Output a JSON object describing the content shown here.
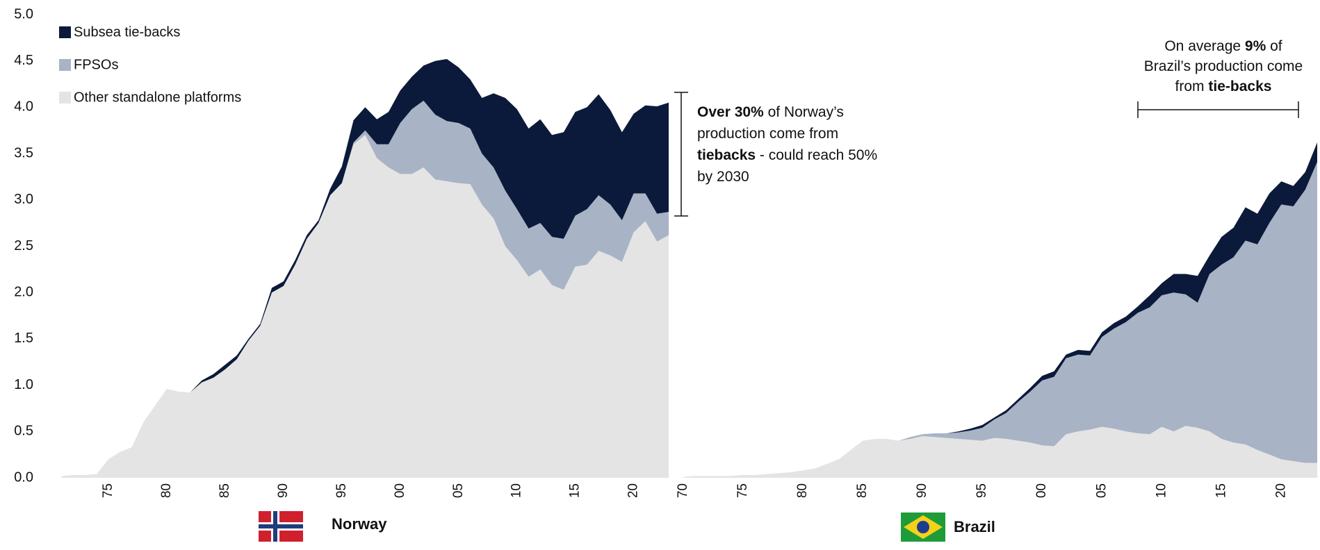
{
  "chart_data": [
    {
      "type": "area",
      "stacked": true,
      "label": "Norway",
      "x": [
        1971,
        1972,
        1973,
        1974,
        1975,
        1976,
        1977,
        1978,
        1979,
        1980,
        1981,
        1982,
        1983,
        1984,
        1985,
        1986,
        1987,
        1988,
        1989,
        1990,
        1991,
        1992,
        1993,
        1994,
        1995,
        1996,
        1997,
        1998,
        1999,
        2000,
        2001,
        2002,
        2003,
        2004,
        2005,
        2006,
        2007,
        2008,
        2009,
        2010,
        2011,
        2012,
        2013,
        2014,
        2015,
        2016,
        2017,
        2018,
        2019,
        2020,
        2021,
        2022,
        2023
      ],
      "series": [
        {
          "name": "Other standalone platforms",
          "color": "#e4e4e4",
          "values": [
            0.02,
            0.03,
            0.03,
            0.04,
            0.2,
            0.28,
            0.33,
            0.6,
            0.78,
            0.96,
            0.93,
            0.92,
            1.03,
            1.08,
            1.17,
            1.28,
            1.48,
            1.64,
            2.0,
            2.07,
            2.3,
            2.58,
            2.75,
            3.05,
            3.18,
            3.6,
            3.7,
            3.45,
            3.35,
            3.28,
            3.28,
            3.35,
            3.22,
            3.2,
            3.18,
            3.17,
            2.95,
            2.8,
            2.5,
            2.35,
            2.17,
            2.25,
            2.08,
            2.03,
            2.28,
            2.3,
            2.45,
            2.4,
            2.33,
            2.65,
            2.77,
            2.55,
            2.62
          ]
        },
        {
          "name": "FPSOs",
          "color": "#a9b3c6",
          "values": [
            0,
            0,
            0,
            0,
            0,
            0,
            0,
            0,
            0,
            0,
            0,
            0,
            0,
            0,
            0,
            0,
            0,
            0,
            0,
            0,
            0,
            0,
            0,
            0,
            0,
            0.02,
            0.05,
            0.15,
            0.25,
            0.55,
            0.7,
            0.72,
            0.7,
            0.65,
            0.65,
            0.6,
            0.55,
            0.55,
            0.6,
            0.55,
            0.52,
            0.5,
            0.52,
            0.55,
            0.55,
            0.6,
            0.6,
            0.55,
            0.45,
            0.42,
            0.3,
            0.3,
            0.25
          ]
        },
        {
          "name": "Subsea tie-backs",
          "color": "#0b1a3a",
          "values": [
            0,
            0,
            0,
            0,
            0,
            0,
            0,
            0,
            0,
            0,
            0,
            0,
            0.02,
            0.04,
            0.05,
            0.04,
            0.02,
            0.02,
            0.05,
            0.05,
            0.05,
            0.04,
            0.03,
            0.07,
            0.18,
            0.24,
            0.25,
            0.27,
            0.35,
            0.35,
            0.35,
            0.38,
            0.58,
            0.67,
            0.6,
            0.53,
            0.6,
            0.8,
            1.0,
            1.08,
            1.08,
            1.12,
            1.1,
            1.15,
            1.12,
            1.1,
            1.09,
            1.02,
            0.95,
            0.86,
            0.95,
            1.16,
            1.18
          ]
        }
      ],
      "xlim": [
        1970,
        2023
      ],
      "ylim": [
        0,
        5
      ],
      "yticks": [
        {
          "value": 0,
          "label": "0.0"
        },
        {
          "value": 0.5,
          "label": "0.5"
        },
        {
          "value": 1,
          "label": "1.0"
        },
        {
          "value": 1.5,
          "label": "1.5"
        },
        {
          "value": 2,
          "label": "2.0"
        },
        {
          "value": 2.5,
          "label": "2.5"
        },
        {
          "value": 3,
          "label": "3.0"
        },
        {
          "value": 3.5,
          "label": "3.5"
        },
        {
          "value": 4,
          "label": "4.0"
        },
        {
          "value": 4.5,
          "label": "4.5"
        },
        {
          "value": 5,
          "label": "5.0"
        }
      ],
      "xticks": [
        {
          "value": 1975,
          "label": "75"
        },
        {
          "value": 1980,
          "label": "80"
        },
        {
          "value": 1985,
          "label": "85"
        },
        {
          "value": 1990,
          "label": "90"
        },
        {
          "value": 1995,
          "label": "95"
        },
        {
          "value": 2000,
          "label": "00"
        },
        {
          "value": 2005,
          "label": "05"
        },
        {
          "value": 2010,
          "label": "10"
        },
        {
          "value": 2015,
          "label": "15"
        },
        {
          "value": 2020,
          "label": "20"
        }
      ],
      "annotation": [
        "Over 30%",
        " of Norway’s production come from ",
        "tiebacks",
        "  - could reach 50% by 2030"
      ]
    },
    {
      "type": "area",
      "stacked": true,
      "label": "Brazil",
      "x": [
        1970,
        1971,
        1972,
        1973,
        1974,
        1975,
        1976,
        1977,
        1978,
        1979,
        1980,
        1981,
        1982,
        1983,
        1984,
        1985,
        1986,
        1987,
        1988,
        1989,
        1990,
        1991,
        1992,
        1993,
        1994,
        1995,
        1996,
        1997,
        1998,
        1999,
        2000,
        2001,
        2002,
        2003,
        2004,
        2005,
        2006,
        2007,
        2008,
        2009,
        2010,
        2011,
        2012,
        2013,
        2014,
        2015,
        2016,
        2017,
        2018,
        2019,
        2020,
        2021,
        2022,
        2023
      ],
      "series": [
        {
          "color": "#e4e4e4",
          "values": [
            0.01,
            0.02,
            0.02,
            0.02,
            0.02,
            0.03,
            0.03,
            0.04,
            0.05,
            0.06,
            0.08,
            0.1,
            0.15,
            0.2,
            0.3,
            0.4,
            0.42,
            0.42,
            0.4,
            0.42,
            0.45,
            0.44,
            0.43,
            0.42,
            0.41,
            0.4,
            0.43,
            0.42,
            0.4,
            0.38,
            0.35,
            0.34,
            0.47,
            0.5,
            0.52,
            0.55,
            0.53,
            0.5,
            0.48,
            0.47,
            0.55,
            0.5,
            0.56,
            0.54,
            0.5,
            0.42,
            0.38,
            0.36,
            0.3,
            0.25,
            0.2,
            0.18,
            0.16,
            0.16
          ]
        },
        {
          "color": "#a9b3c6",
          "values": [
            0,
            0,
            0,
            0,
            0,
            0,
            0,
            0,
            0,
            0,
            0,
            0,
            0,
            0,
            0,
            0,
            0,
            0,
            0,
            0.02,
            0.02,
            0.04,
            0.05,
            0.07,
            0.1,
            0.14,
            0.2,
            0.28,
            0.42,
            0.55,
            0.7,
            0.75,
            0.82,
            0.83,
            0.8,
            0.97,
            1.08,
            1.18,
            1.3,
            1.37,
            1.42,
            1.5,
            1.42,
            1.35,
            1.7,
            1.88,
            2.0,
            2.2,
            2.22,
            2.5,
            2.75,
            2.75,
            2.95,
            3.25
          ]
        },
        {
          "color": "#0b1a3a",
          "values": [
            0,
            0,
            0,
            0,
            0,
            0,
            0,
            0,
            0,
            0,
            0,
            0,
            0,
            0,
            0,
            0,
            0,
            0,
            0,
            0,
            0,
            0,
            0,
            0.01,
            0.02,
            0.03,
            0.02,
            0.03,
            0.03,
            0.04,
            0.05,
            0.06,
            0.04,
            0.05,
            0.05,
            0.05,
            0.06,
            0.06,
            0.07,
            0.13,
            0.13,
            0.2,
            0.22,
            0.29,
            0.2,
            0.3,
            0.32,
            0.36,
            0.33,
            0.32,
            0.25,
            0.22,
            0.19,
            0.21
          ]
        }
      ],
      "xlim": [
        1970,
        2023
      ],
      "ylim": [
        0,
        5
      ],
      "xticks": [
        {
          "value": 1970,
          "label": "70"
        },
        {
          "value": 1975,
          "label": "75"
        },
        {
          "value": 1980,
          "label": "80"
        },
        {
          "value": 1985,
          "label": "85"
        },
        {
          "value": 1990,
          "label": "90"
        },
        {
          "value": 1995,
          "label": "95"
        },
        {
          "value": 2000,
          "label": "00"
        },
        {
          "value": 2005,
          "label": "05"
        },
        {
          "value": 2010,
          "label": "10"
        },
        {
          "value": 2015,
          "label": "15"
        },
        {
          "value": 2020,
          "label": "20"
        }
      ],
      "annotation": [
        "On average ",
        "9%",
        " of Brazil’s production come from ",
        "tie-backs"
      ]
    }
  ]
}
